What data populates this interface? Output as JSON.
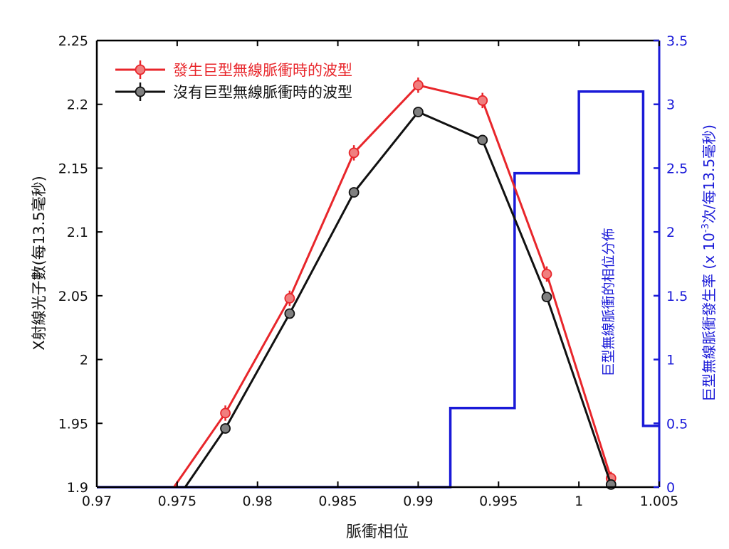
{
  "chart_data": {
    "type": "line",
    "xlabel": "脈衝相位",
    "ylabel_left": "X射線光子數(每13.5毫秒)",
    "ylabel_right_parts": [
      "巨型無線脈衝發生率 (x 10",
      "-3",
      "次/每13.5毫秒)"
    ],
    "annotation": "巨型無線脈衝的相位分佈",
    "xlim": [
      0.97,
      1.005
    ],
    "ylim_left": [
      1.9,
      2.25
    ],
    "ylim_right": [
      0,
      3.5
    ],
    "x_ticks": [
      0.97,
      0.975,
      0.98,
      0.985,
      0.99,
      0.995,
      1,
      1.005
    ],
    "x_tick_labels": [
      "0.97",
      "0.975",
      "0.98",
      "0.985",
      "0.99",
      "0.995",
      "1",
      "1.005"
    ],
    "y_left_ticks": [
      1.9,
      1.95,
      2,
      2.05,
      2.1,
      2.15,
      2.2,
      2.25
    ],
    "y_left_tick_labels": [
      "1.9",
      "1.95",
      "2",
      "2.05",
      "2.1",
      "2.15",
      "2.2",
      "2.25"
    ],
    "y_right_ticks": [
      0,
      0.5,
      1,
      1.5,
      2,
      2.5,
      3,
      3.5
    ],
    "y_right_tick_labels": [
      "0",
      "0.5",
      "1",
      "1.5",
      "2",
      "2.5",
      "3",
      "3.5"
    ],
    "legend_position": "top-left",
    "series": [
      {
        "name": "發生巨型無線脈衝時的波型",
        "color": "#e8262b",
        "marker_fill": "#f07f7f",
        "axis": "left",
        "points": [
          {
            "x": 0.9748,
            "y": 1.9,
            "marker": false
          },
          {
            "x": 0.978,
            "y": 1.958,
            "err": 0.006,
            "marker": true
          },
          {
            "x": 0.982,
            "y": 2.048,
            "err": 0.006,
            "marker": true
          },
          {
            "x": 0.986,
            "y": 2.162,
            "err": 0.006,
            "marker": true
          },
          {
            "x": 0.99,
            "y": 2.215,
            "err": 0.006,
            "marker": true
          },
          {
            "x": 0.994,
            "y": 2.203,
            "err": 0.006,
            "marker": true
          },
          {
            "x": 0.998,
            "y": 2.067,
            "err": 0.006,
            "marker": true
          },
          {
            "x": 1.002,
            "y": 1.907,
            "err": 0.005,
            "marker": true
          }
        ]
      },
      {
        "name": "沒有巨型無線脈衝時的波型",
        "color": "#111111",
        "marker_fill": "#808080",
        "axis": "left",
        "points": [
          {
            "x": 0.9755,
            "y": 1.9,
            "marker": false
          },
          {
            "x": 0.978,
            "y": 1.946,
            "marker": true
          },
          {
            "x": 0.982,
            "y": 2.036,
            "marker": true
          },
          {
            "x": 0.986,
            "y": 2.131,
            "marker": true
          },
          {
            "x": 0.99,
            "y": 2.194,
            "marker": true
          },
          {
            "x": 0.994,
            "y": 2.172,
            "marker": true
          },
          {
            "x": 0.998,
            "y": 2.049,
            "marker": true
          },
          {
            "x": 1.002,
            "y": 1.902,
            "marker": true
          }
        ]
      }
    ],
    "histogram": {
      "color": "#1a1ad8",
      "axis": "right",
      "bins": [
        {
          "x0": 0.97,
          "x1": 0.992,
          "value": 0
        },
        {
          "x0": 0.992,
          "x1": 0.996,
          "value": 0.62
        },
        {
          "x0": 0.996,
          "x1": 1.0,
          "value": 2.46
        },
        {
          "x0": 1.0,
          "x1": 1.004,
          "value": 3.1
        },
        {
          "x0": 1.004,
          "x1": 1.005,
          "value": 0.48
        }
      ]
    },
    "colors": {
      "axis": "#000000",
      "right_axis": "#1a1ad8",
      "annotation": "#1a1ad8"
    }
  }
}
